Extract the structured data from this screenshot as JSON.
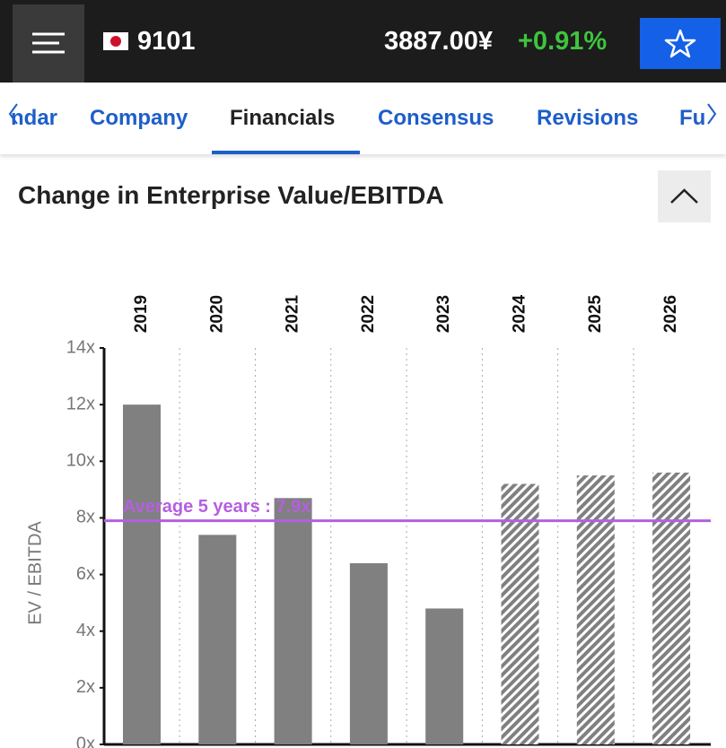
{
  "header": {
    "ticker": "9101",
    "price": "3887.00¥",
    "change": "+0.91%"
  },
  "tabs": {
    "items": [
      "ndar",
      "Company",
      "Financials",
      "Consensus",
      "Revisions",
      "Fu"
    ],
    "selected": 2
  },
  "section": {
    "title": "Change in Enterprise Value/EBITDA"
  },
  "chart_data": {
    "type": "bar",
    "y_label": "EV / EBITDA",
    "categories": [
      "2019",
      "2020",
      "2021",
      "2022",
      "2023",
      "2024",
      "2025",
      "2026"
    ],
    "series": [
      {
        "color": "#808080",
        "values": [
          12.0,
          7.4,
          8.7,
          6.4,
          4.8,
          null,
          null,
          null
        ]
      },
      {
        "color": "#808080",
        "pattern": "hatch",
        "values": [
          null,
          null,
          null,
          null,
          null,
          9.2,
          9.5,
          9.6
        ]
      }
    ],
    "ylim": [
      0,
      14
    ],
    "yticks": [
      {
        "value": 0,
        "label": "0x"
      },
      {
        "value": 2,
        "label": "2x"
      },
      {
        "value": 4,
        "label": "4x"
      },
      {
        "value": 6,
        "label": "6x"
      },
      {
        "value": 8,
        "label": "8x"
      },
      {
        "value": 10,
        "label": "10x"
      },
      {
        "value": 12,
        "label": "12x"
      },
      {
        "value": 14,
        "label": "14x"
      }
    ],
    "reference_line": {
      "value": 7.9,
      "label": "Average 5 years : 7.9x",
      "color": "#b55fe0"
    }
  }
}
